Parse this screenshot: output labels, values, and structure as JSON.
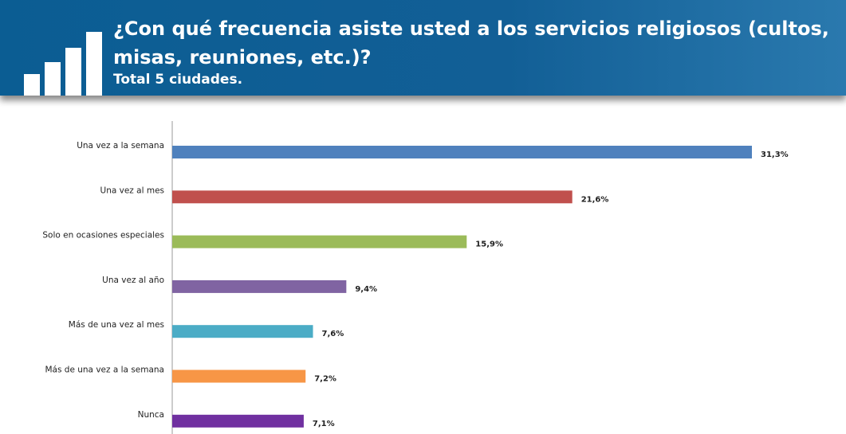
{
  "chart_data": {
    "type": "bar",
    "orientation": "horizontal",
    "title": "¿Con qué frecuencia asiste usted a los servicios religiosos (cultos, misas, reuniones, etc.)?",
    "subtitle": "Total 5 ciudades.",
    "categories": [
      "Una vez a la semana",
      "Una vez al mes",
      "Solo en ocasiones especiales",
      "Una vez al año",
      "Más de una vez al mes",
      "Más de una vez a la semana",
      "Nunca"
    ],
    "values": [
      31.3,
      21.6,
      15.9,
      9.4,
      7.6,
      7.2,
      7.1
    ],
    "value_labels": [
      "31,3%",
      "21,6%",
      "15,9%",
      "9,4%",
      "7,6%",
      "7,2%",
      "7,1%"
    ],
    "colors": [
      "#4f81bd",
      "#c0504d",
      "#9bbb59",
      "#8064a2",
      "#4bacc6",
      "#f79646",
      "#7030a0"
    ]
  }
}
